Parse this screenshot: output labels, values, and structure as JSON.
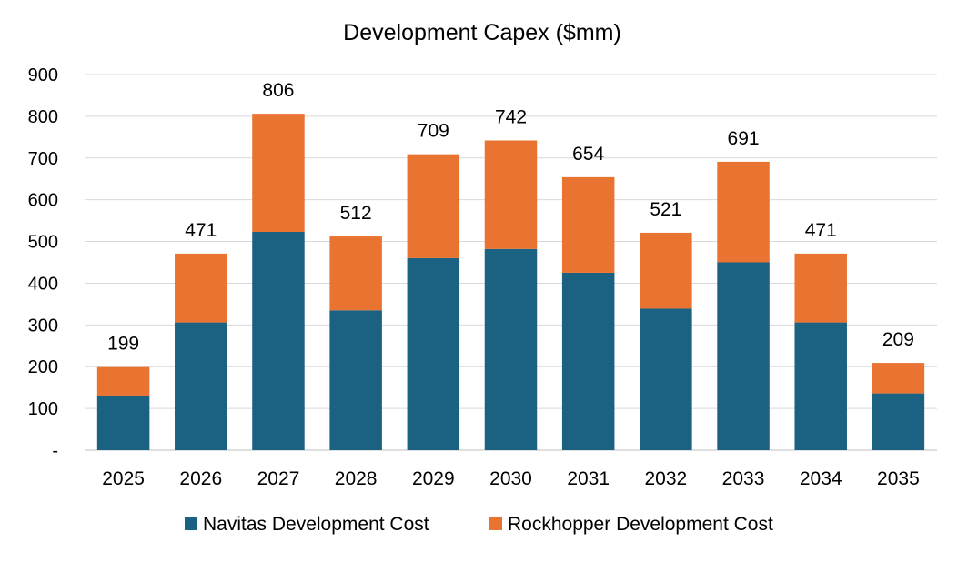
{
  "chart_data": {
    "type": "bar",
    "stacked": true,
    "title": "Development Capex ($mm)",
    "xlabel": "",
    "ylabel": "",
    "ylim": [
      0,
      900
    ],
    "y_ticks": [
      "-",
      "100",
      "200",
      "300",
      "400",
      "500",
      "600",
      "700",
      "800",
      "900"
    ],
    "categories": [
      "2025",
      "2026",
      "2027",
      "2028",
      "2029",
      "2030",
      "2031",
      "2032",
      "2033",
      "2034",
      "2035"
    ],
    "series": [
      {
        "name": "Navitas Development Cost",
        "color": "#1b6182",
        "values": [
          130,
          306,
          523,
          335,
          460,
          482,
          425,
          339,
          450,
          306,
          136
        ]
      },
      {
        "name": "Rockhopper Development Cost",
        "color": "#e97432",
        "values": [
          69,
          165,
          283,
          177,
          249,
          260,
          229,
          182,
          241,
          165,
          73
        ]
      }
    ],
    "totals": [
      "199",
      "471",
      "806",
      "512",
      "709",
      "742",
      "654",
      "521",
      "691",
      "471",
      "209"
    ],
    "grid": true,
    "legend": "bottom"
  }
}
